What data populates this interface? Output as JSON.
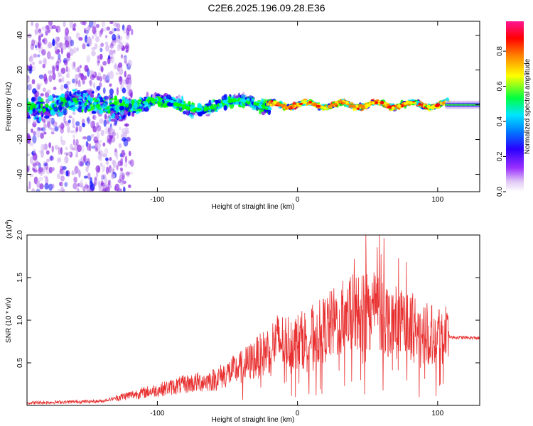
{
  "title": "C2E6.2025.196.09.28.E36",
  "colors": {
    "snr_line": "#e83030",
    "frame": "#000000"
  },
  "chart_data": [
    {
      "type": "heatmap",
      "xlabel": "Height of straight line (km)",
      "ylabel": "Frequency (Hz)",
      "xlim": [
        -193,
        130
      ],
      "ylim": [
        -50,
        48
      ],
      "xticks": [
        "-100",
        "0",
        "100"
      ],
      "yticks": [
        "-40",
        "-20",
        "0",
        "20",
        "40"
      ],
      "colorbar": {
        "label": "Normalized spectral amplitude",
        "ticks": [
          "0.0",
          "0.2",
          "0.4",
          "0.6",
          "0.8"
        ],
        "range": [
          0,
          0.97
        ],
        "colormap": [
          "#ffffff",
          "#d0b0f0",
          "#8a2be2",
          "#0000ff",
          "#00e5ff",
          "#00ff00",
          "#ffff00",
          "#ff8000",
          "#ff0000",
          "#ff1493"
        ]
      },
      "grid": false
    },
    {
      "type": "line",
      "xlabel": "Height of straight line (km)",
      "ylabel": "SNR (10 * v/v)",
      "multiplier": "(x10",
      "multiplier_exp": "4",
      "multiplier_close": ")",
      "xlim": [
        -193,
        130
      ],
      "ylim": [
        0,
        2.0
      ],
      "xticks": [
        "-100",
        "0",
        "100"
      ],
      "yticks": [
        "0.5",
        "1.0",
        "1.5",
        "2.0"
      ],
      "series": [
        {
          "envelope": [
            [
              -193,
              0.03
            ],
            [
              -140,
              0.05
            ],
            [
              -120,
              0.12
            ],
            [
              -100,
              0.18
            ],
            [
              -80,
              0.25
            ],
            [
              -60,
              0.3
            ],
            [
              -40,
              0.45
            ],
            [
              -25,
              0.6
            ],
            [
              -15,
              0.75
            ],
            [
              0,
              0.75
            ],
            [
              15,
              0.85
            ],
            [
              25,
              0.95
            ],
            [
              35,
              1.05
            ],
            [
              45,
              1.1
            ],
            [
              55,
              1.15
            ],
            [
              65,
              1.0
            ],
            [
              75,
              0.95
            ],
            [
              85,
              0.9
            ],
            [
              95,
              0.85
            ],
            [
              105,
              0.85
            ],
            [
              110,
              0.8
            ],
            [
              130,
              0.79
            ]
          ]
        }
      ],
      "grid": false
    }
  ]
}
